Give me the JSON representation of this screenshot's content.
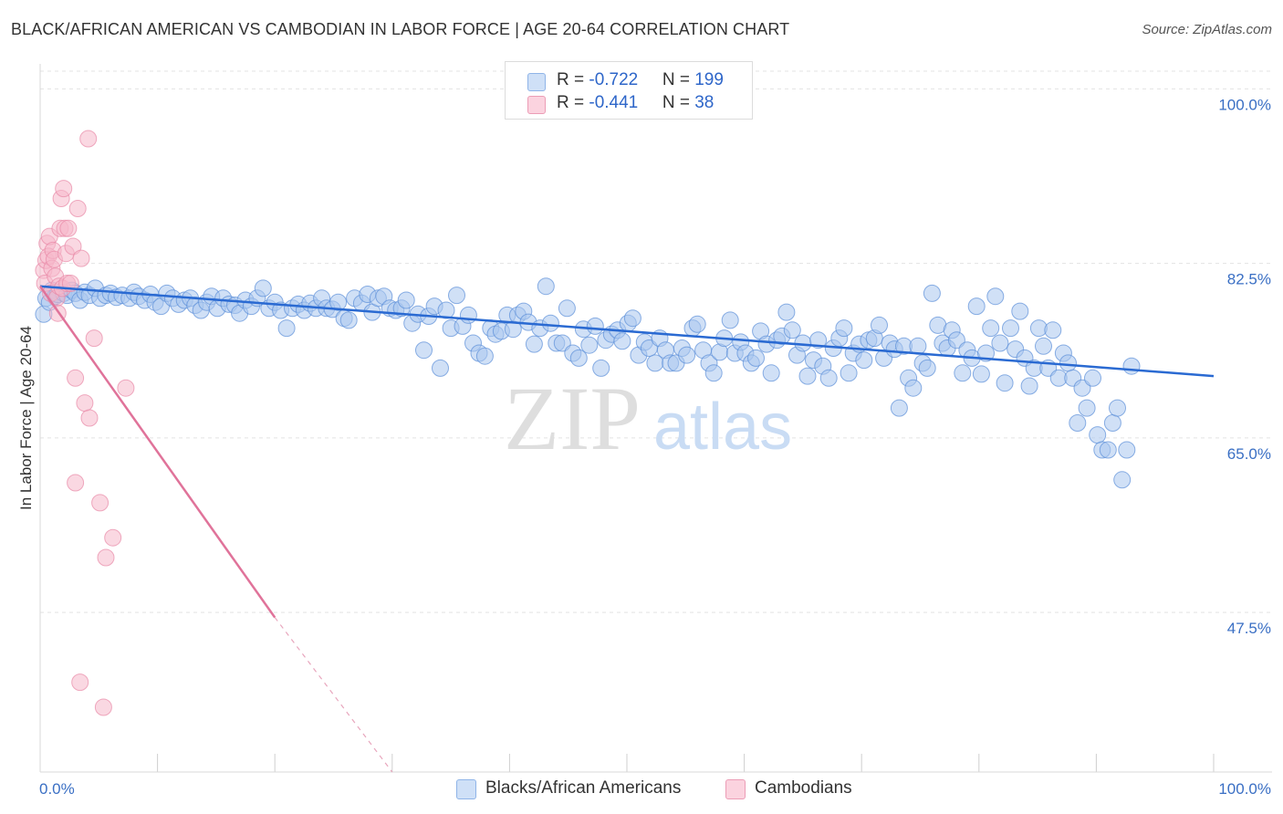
{
  "header": {
    "title": "BLACK/AFRICAN AMERICAN VS CAMBODIAN IN LABOR FORCE | AGE 20-64 CORRELATION CHART",
    "source": "Source: ZipAtlas.com"
  },
  "watermark": {
    "zip": "ZIP",
    "atlas": "atlas"
  },
  "legend": {
    "rows": [
      {
        "r_label": "R = ",
        "r_value": "-0.722",
        "n_label": "N = ",
        "n_value": "199",
        "color": "#a9c6ef"
      },
      {
        "r_label": "R = ",
        "r_value": "-0.441",
        "n_label": "N = ",
        "n_value": "38",
        "color": "#f5b8cb"
      }
    ]
  },
  "bottom_legend": {
    "items": [
      {
        "label": "Blacks/African Americans",
        "color": "#a9c6ef"
      },
      {
        "label": "Cambodians",
        "color": "#f5b8cb"
      }
    ]
  },
  "chart_data": {
    "type": "scatter",
    "title": "BLACK/AFRICAN AMERICAN VS CAMBODIAN IN LABOR FORCE | AGE 20-64 CORRELATION CHART",
    "xlabel": "",
    "ylabel": "In Labor Force | Age 20-64",
    "xlim": [
      0,
      100
    ],
    "ylim": [
      31.5,
      102.5
    ],
    "x_tick_labels": [
      "0.0%",
      "100.0%"
    ],
    "y_ticks": [
      47.5,
      65.0,
      82.5,
      100.0
    ],
    "y_tick_labels": [
      "47.5%",
      "65.0%",
      "82.5%",
      "100.0%"
    ],
    "grid": true,
    "legend_position": "top-center",
    "series": [
      {
        "name": "Blacks/African Americans",
        "color": "#a9c6ef",
        "stroke": "#5b8fd9",
        "r": -0.722,
        "n": 199,
        "trend": {
          "x": [
            0,
            100
          ],
          "y": [
            80.2,
            71.2
          ]
        },
        "points": [
          [
            0.3,
            77.4
          ],
          [
            0.5,
            79.0
          ],
          [
            0.8,
            78.6
          ],
          [
            1.0,
            79.8
          ],
          [
            1.3,
            79.2
          ],
          [
            1.5,
            79.4
          ],
          [
            2.0,
            79.5
          ],
          [
            2.3,
            79.3
          ],
          [
            2.7,
            79.8
          ],
          [
            3.0,
            79.5
          ],
          [
            3.4,
            78.8
          ],
          [
            3.8,
            79.6
          ],
          [
            4.2,
            79.3
          ],
          [
            4.7,
            80.0
          ],
          [
            5.1,
            79.0
          ],
          [
            5.6,
            79.3
          ],
          [
            6.0,
            79.5
          ],
          [
            6.5,
            79.1
          ],
          [
            7.0,
            79.3
          ],
          [
            7.6,
            79.0
          ],
          [
            8.0,
            79.6
          ],
          [
            8.4,
            79.2
          ],
          [
            8.9,
            78.8
          ],
          [
            9.4,
            79.4
          ],
          [
            9.8,
            78.6
          ],
          [
            10.3,
            78.2
          ],
          [
            10.8,
            79.5
          ],
          [
            11.3,
            79.0
          ],
          [
            11.8,
            78.4
          ],
          [
            12.3,
            78.8
          ],
          [
            12.8,
            79.0
          ],
          [
            13.2,
            78.3
          ],
          [
            13.7,
            77.8
          ],
          [
            14.2,
            78.6
          ],
          [
            14.6,
            79.2
          ],
          [
            15.1,
            78.0
          ],
          [
            15.6,
            79.0
          ],
          [
            16.1,
            78.4
          ],
          [
            16.6,
            78.3
          ],
          [
            17.0,
            77.5
          ],
          [
            17.5,
            78.8
          ],
          [
            18.0,
            78.2
          ],
          [
            18.5,
            79.0
          ],
          [
            19.0,
            80.0
          ],
          [
            19.5,
            78.0
          ],
          [
            20.0,
            78.6
          ],
          [
            20.5,
            77.8
          ],
          [
            21.0,
            76.0
          ],
          [
            21.5,
            78.0
          ],
          [
            22.0,
            78.4
          ],
          [
            22.5,
            77.8
          ],
          [
            23.0,
            78.5
          ],
          [
            23.5,
            78.0
          ],
          [
            24.0,
            79.0
          ],
          [
            24.4,
            78.0
          ],
          [
            24.9,
            77.9
          ],
          [
            25.4,
            78.6
          ],
          [
            25.9,
            77.0
          ],
          [
            26.3,
            76.8
          ],
          [
            26.8,
            79.0
          ],
          [
            27.4,
            78.5
          ],
          [
            27.9,
            79.4
          ],
          [
            28.3,
            77.6
          ],
          [
            28.8,
            79.0
          ],
          [
            29.3,
            79.2
          ],
          [
            29.8,
            78.0
          ],
          [
            30.3,
            77.8
          ],
          [
            30.8,
            78.0
          ],
          [
            31.2,
            78.8
          ],
          [
            31.7,
            76.5
          ],
          [
            32.2,
            77.4
          ],
          [
            32.7,
            73.8
          ],
          [
            33.1,
            77.2
          ],
          [
            33.6,
            78.2
          ],
          [
            34.1,
            72.0
          ],
          [
            34.6,
            77.8
          ],
          [
            35.0,
            76.0
          ],
          [
            35.5,
            79.3
          ],
          [
            36.0,
            76.2
          ],
          [
            36.5,
            77.3
          ],
          [
            36.9,
            74.5
          ],
          [
            37.4,
            73.5
          ],
          [
            37.9,
            73.2
          ],
          [
            38.4,
            76.0
          ],
          [
            38.8,
            75.4
          ],
          [
            39.3,
            75.7
          ],
          [
            39.8,
            77.3
          ],
          [
            40.3,
            75.9
          ],
          [
            40.7,
            77.3
          ],
          [
            41.2,
            77.7
          ],
          [
            41.6,
            76.6
          ],
          [
            42.1,
            74.4
          ],
          [
            42.6,
            76.0
          ],
          [
            43.1,
            80.2
          ],
          [
            43.5,
            76.5
          ],
          [
            44.0,
            74.5
          ],
          [
            44.5,
            74.5
          ],
          [
            44.9,
            78.0
          ],
          [
            45.4,
            73.5
          ],
          [
            45.9,
            73.0
          ],
          [
            46.3,
            75.9
          ],
          [
            46.8,
            74.3
          ],
          [
            47.3,
            76.2
          ],
          [
            47.8,
            72.0
          ],
          [
            48.2,
            74.8
          ],
          [
            48.7,
            75.4
          ],
          [
            49.2,
            75.8
          ],
          [
            49.6,
            74.7
          ],
          [
            50.1,
            76.5
          ],
          [
            50.5,
            77.0
          ],
          [
            51.0,
            73.3
          ],
          [
            51.5,
            74.6
          ],
          [
            51.9,
            74.0
          ],
          [
            52.4,
            72.5
          ],
          [
            52.8,
            75.0
          ],
          [
            53.3,
            73.8
          ],
          [
            53.7,
            72.5
          ],
          [
            54.2,
            72.5
          ],
          [
            54.7,
            74.0
          ],
          [
            55.1,
            73.3
          ],
          [
            55.6,
            76.0
          ],
          [
            56.0,
            76.4
          ],
          [
            56.5,
            73.8
          ],
          [
            57.0,
            72.5
          ],
          [
            57.4,
            71.5
          ],
          [
            57.9,
            73.6
          ],
          [
            58.3,
            75.0
          ],
          [
            58.8,
            76.8
          ],
          [
            59.2,
            73.5
          ],
          [
            59.7,
            74.6
          ],
          [
            60.1,
            73.5
          ],
          [
            60.6,
            72.5
          ],
          [
            61.0,
            73.0
          ],
          [
            61.4,
            75.7
          ],
          [
            61.9,
            74.4
          ],
          [
            62.3,
            71.5
          ],
          [
            62.8,
            74.8
          ],
          [
            63.2,
            75.2
          ],
          [
            63.6,
            77.6
          ],
          [
            64.1,
            75.8
          ],
          [
            64.5,
            73.3
          ],
          [
            65.0,
            74.5
          ],
          [
            65.4,
            71.2
          ],
          [
            65.9,
            72.8
          ],
          [
            66.3,
            74.8
          ],
          [
            66.7,
            72.2
          ],
          [
            67.2,
            71.0
          ],
          [
            67.6,
            74.0
          ],
          [
            68.1,
            75.0
          ],
          [
            68.5,
            76.0
          ],
          [
            68.9,
            71.5
          ],
          [
            69.3,
            73.5
          ],
          [
            69.8,
            74.4
          ],
          [
            70.2,
            72.8
          ],
          [
            70.6,
            74.8
          ],
          [
            71.1,
            75.0
          ],
          [
            71.5,
            76.3
          ],
          [
            71.9,
            73.0
          ],
          [
            72.4,
            74.5
          ],
          [
            72.8,
            73.9
          ],
          [
            73.2,
            68.0
          ],
          [
            73.6,
            74.2
          ],
          [
            74.0,
            71.0
          ],
          [
            74.4,
            70.0
          ],
          [
            74.8,
            74.2
          ],
          [
            75.2,
            72.5
          ],
          [
            75.6,
            72.0
          ],
          [
            76.0,
            79.5
          ],
          [
            76.5,
            76.3
          ],
          [
            76.9,
            74.5
          ],
          [
            77.3,
            74.0
          ],
          [
            77.7,
            75.8
          ],
          [
            78.1,
            74.8
          ],
          [
            78.6,
            71.5
          ],
          [
            79.0,
            73.8
          ],
          [
            79.4,
            73.0
          ],
          [
            79.8,
            78.2
          ],
          [
            80.2,
            71.4
          ],
          [
            80.6,
            73.5
          ],
          [
            81.0,
            76.0
          ],
          [
            81.4,
            79.2
          ],
          [
            81.8,
            74.5
          ],
          [
            82.2,
            70.5
          ],
          [
            82.7,
            76.0
          ],
          [
            83.1,
            73.9
          ],
          [
            83.5,
            77.7
          ],
          [
            83.9,
            73.0
          ],
          [
            84.3,
            70.2
          ],
          [
            84.7,
            72.0
          ],
          [
            85.1,
            76.0
          ],
          [
            85.5,
            74.2
          ],
          [
            85.9,
            72.0
          ],
          [
            86.3,
            75.8
          ],
          [
            86.8,
            71.0
          ],
          [
            87.2,
            73.5
          ],
          [
            87.6,
            72.5
          ],
          [
            88.0,
            71.0
          ],
          [
            88.4,
            66.5
          ],
          [
            88.8,
            70.0
          ],
          [
            89.2,
            68.0
          ],
          [
            89.7,
            71.0
          ],
          [
            90.1,
            65.3
          ],
          [
            90.5,
            63.8
          ],
          [
            91.0,
            63.8
          ],
          [
            91.4,
            66.5
          ],
          [
            91.8,
            68.0
          ],
          [
            92.2,
            60.8
          ],
          [
            92.6,
            63.8
          ],
          [
            93.0,
            72.2
          ]
        ]
      },
      {
        "name": "Cambodians",
        "color": "#f5b8cb",
        "stroke": "#e889a7",
        "r": -0.441,
        "n": 38,
        "trend": {
          "x": [
            0,
            20
          ],
          "y": [
            80.2,
            47.0
          ]
        },
        "trend_dashed": {
          "x": [
            20,
            30
          ],
          "y": [
            47.0,
            31.5
          ]
        },
        "points": [
          [
            0.3,
            81.8
          ],
          [
            0.4,
            80.5
          ],
          [
            0.5,
            82.8
          ],
          [
            0.6,
            84.5
          ],
          [
            0.7,
            83.2
          ],
          [
            0.8,
            85.2
          ],
          [
            0.9,
            79.5
          ],
          [
            1.0,
            82.0
          ],
          [
            1.1,
            83.8
          ],
          [
            1.2,
            82.9
          ],
          [
            1.3,
            81.2
          ],
          [
            1.4,
            79.0
          ],
          [
            1.5,
            77.5
          ],
          [
            1.6,
            80.2
          ],
          [
            1.7,
            86.0
          ],
          [
            1.8,
            89.0
          ],
          [
            1.9,
            80.0
          ],
          [
            2.0,
            90.0
          ],
          [
            2.1,
            86.0
          ],
          [
            2.2,
            83.5
          ],
          [
            2.3,
            80.5
          ],
          [
            2.4,
            86.0
          ],
          [
            2.6,
            80.5
          ],
          [
            2.8,
            84.2
          ],
          [
            3.0,
            71.0
          ],
          [
            3.2,
            88.0
          ],
          [
            3.5,
            83.0
          ],
          [
            3.8,
            68.5
          ],
          [
            4.2,
            67.0
          ],
          [
            4.6,
            75.0
          ],
          [
            5.1,
            58.5
          ],
          [
            5.6,
            53.0
          ],
          [
            6.2,
            55.0
          ],
          [
            7.3,
            70.0
          ],
          [
            3.0,
            60.5
          ],
          [
            3.4,
            40.5
          ],
          [
            5.4,
            38.0
          ],
          [
            4.1,
            95.0
          ]
        ]
      }
    ]
  }
}
